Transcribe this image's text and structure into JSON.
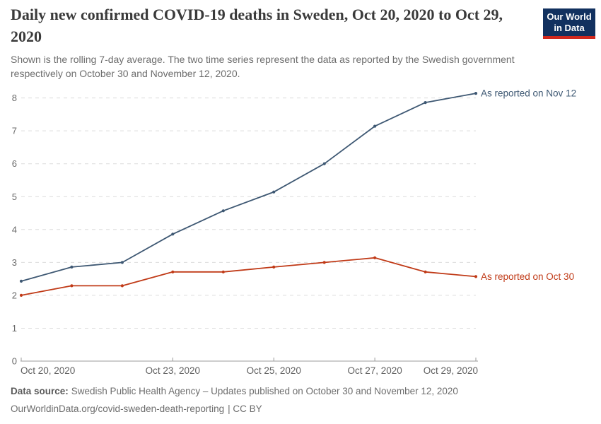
{
  "logo": {
    "line1": "Our World",
    "line2": "in Data"
  },
  "chart_data": {
    "type": "line",
    "title": "Daily new confirmed COVID-19 deaths in Sweden, Oct 20, 2020 to Oct 29, 2020",
    "subtitle": "Shown is the rolling 7-day average. The two time series represent the data as reported by the Swedish government respectively on October 30 and November 12, 2020.",
    "x": [
      "Oct 20",
      "Oct 21",
      "Oct 22",
      "Oct 23",
      "Oct 24",
      "Oct 25",
      "Oct 26",
      "Oct 27",
      "Oct 28",
      "Oct 29"
    ],
    "series": [
      {
        "name": "As reported on Nov 12",
        "color": "#3e5873",
        "values": [
          2.43,
          2.86,
          3.0,
          3.86,
          4.57,
          5.14,
          6.0,
          7.14,
          7.86,
          8.14
        ]
      },
      {
        "name": "As reported on Oct 30",
        "color": "#c03a17",
        "values": [
          2.0,
          2.29,
          2.29,
          2.71,
          2.71,
          2.86,
          3.0,
          3.14,
          2.71,
          2.57
        ]
      }
    ],
    "ylim": [
      0,
      8
    ],
    "yticks": [
      0,
      1,
      2,
      3,
      4,
      5,
      6,
      7,
      8
    ],
    "xticks": [
      {
        "i": 0,
        "label": "Oct 20, 2020",
        "anchor": "start"
      },
      {
        "i": 3,
        "label": "Oct 23, 2020",
        "anchor": "middle"
      },
      {
        "i": 5,
        "label": "Oct 25, 2020",
        "anchor": "middle"
      },
      {
        "i": 7,
        "label": "Oct 27, 2020",
        "anchor": "middle"
      },
      {
        "i": 9,
        "label": "Oct 29, 2020",
        "anchor": "end"
      }
    ],
    "grid": "horizontal-dashed",
    "legend": "series-end-labels",
    "colors": {
      "grid": "#dcdcdc",
      "axis": "#9b9b9b",
      "tick_label": "#6a6a6a"
    }
  },
  "footer": {
    "source_label": "Data source:",
    "source_text": "Swedish Public Health Agency – Updates published on October 30 and November 12, 2020",
    "url_text": "OurWorldinData.org/covid-sweden-death-reporting",
    "license_text": "| CC BY"
  }
}
